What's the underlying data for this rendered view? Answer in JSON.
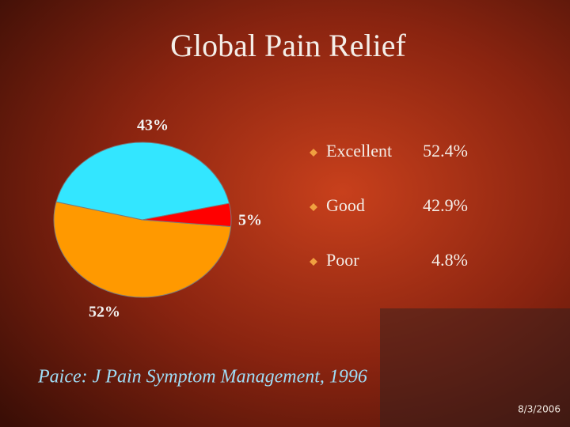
{
  "chart_data": {
    "type": "pie",
    "title": "Global Pain Relief",
    "categories": [
      "Excellent",
      "Good",
      "Poor"
    ],
    "values": [
      52.4,
      42.9,
      4.8
    ],
    "value_labels": [
      "52%",
      "43%",
      "5%"
    ],
    "legend_labels": [
      "52.4%",
      "42.9%",
      "4.8%"
    ],
    "colors": [
      "#ff9900",
      "#33e6ff",
      "#ff0000"
    ]
  },
  "footer": {
    "citation": "Paice: J Pain Symptom Management, 1996",
    "date": "8/3/2006"
  }
}
